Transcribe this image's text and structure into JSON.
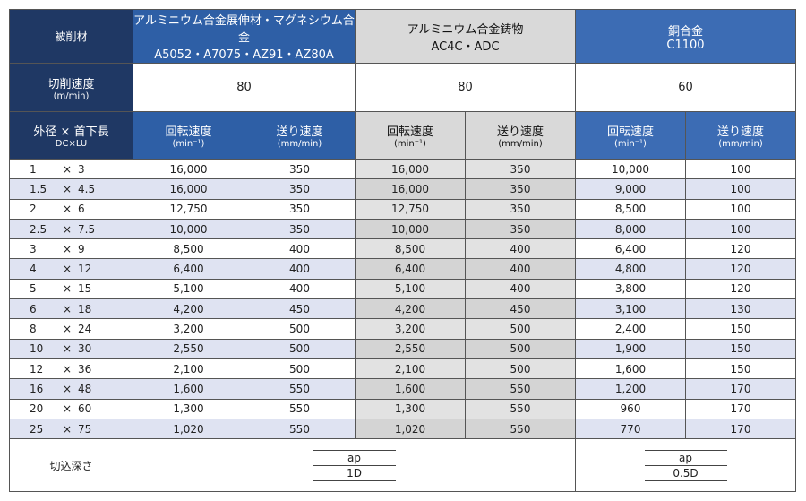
{
  "header": {
    "material_label": "被削材",
    "groups": [
      {
        "name": "アルミニウム合金展伸材・マグネシウム合金",
        "grades": "A5052・A7075・AZ91・AZ80A"
      },
      {
        "name": "アルミニウム合金鋳物",
        "grades": "AC4C・ADC"
      },
      {
        "name": "銅合金",
        "grades": "C1100"
      }
    ]
  },
  "cutting_speed": {
    "label": "切削速度",
    "unit": "(m/min)",
    "values": [
      "80",
      "80",
      "60"
    ]
  },
  "columns": {
    "size_label": "外径 × 首下長",
    "size_sub": "DC×LU",
    "size_separator": "×",
    "rpm": "回転速度",
    "rpm_unit": "(min⁻¹)",
    "feed": "送り速度",
    "feed_unit": "(mm/min)"
  },
  "rows": [
    {
      "dc": "1",
      "lu": "3",
      "values": [
        "16,000",
        "350",
        "16,000",
        "350",
        "10,000",
        "100"
      ]
    },
    {
      "dc": "1.5",
      "lu": "4.5",
      "values": [
        "16,000",
        "350",
        "16,000",
        "350",
        "9,000",
        "100"
      ]
    },
    {
      "dc": "2",
      "lu": "6",
      "values": [
        "12,750",
        "350",
        "12,750",
        "350",
        "8,500",
        "100"
      ]
    },
    {
      "dc": "2.5",
      "lu": "7.5",
      "values": [
        "10,000",
        "350",
        "10,000",
        "350",
        "8,000",
        "100"
      ]
    },
    {
      "dc": "3",
      "lu": "9",
      "values": [
        "8,500",
        "400",
        "8,500",
        "400",
        "6,400",
        "120"
      ]
    },
    {
      "dc": "4",
      "lu": "12",
      "values": [
        "6,400",
        "400",
        "6,400",
        "400",
        "4,800",
        "120"
      ]
    },
    {
      "dc": "5",
      "lu": "15",
      "values": [
        "5,100",
        "400",
        "5,100",
        "400",
        "3,800",
        "120"
      ]
    },
    {
      "dc": "6",
      "lu": "18",
      "values": [
        "4,200",
        "450",
        "4,200",
        "450",
        "3,100",
        "130"
      ]
    },
    {
      "dc": "8",
      "lu": "24",
      "values": [
        "3,200",
        "500",
        "3,200",
        "500",
        "2,400",
        "150"
      ]
    },
    {
      "dc": "10",
      "lu": "30",
      "values": [
        "2,550",
        "500",
        "2,550",
        "500",
        "1,900",
        "150"
      ]
    },
    {
      "dc": "12",
      "lu": "36",
      "values": [
        "2,100",
        "500",
        "2,100",
        "500",
        "1,600",
        "150"
      ]
    },
    {
      "dc": "16",
      "lu": "48",
      "values": [
        "1,600",
        "550",
        "1,600",
        "550",
        "1,200",
        "170"
      ]
    },
    {
      "dc": "20",
      "lu": "60",
      "values": [
        "1,300",
        "550",
        "1,300",
        "550",
        "960",
        "170"
      ]
    },
    {
      "dc": "25",
      "lu": "75",
      "values": [
        "1,020",
        "550",
        "1,020",
        "550",
        "770",
        "170"
      ]
    }
  ],
  "depth": {
    "label": "切込深さ",
    "symbol": "ap",
    "values": [
      "1D",
      "0.5D"
    ]
  }
}
